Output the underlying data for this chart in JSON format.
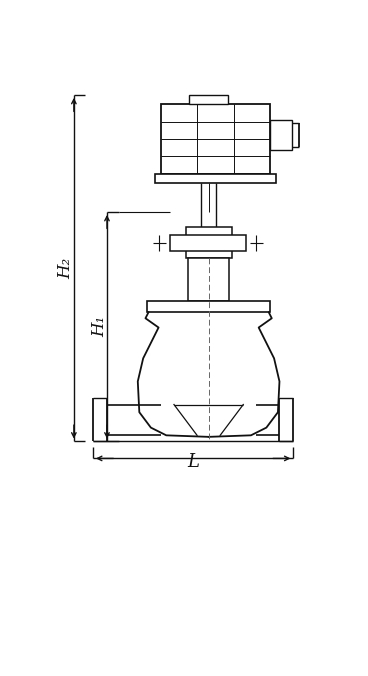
{
  "background_color": "#ffffff",
  "line_color": "#111111",
  "fig_width": 3.68,
  "fig_height": 6.76,
  "dpi": 100,
  "label_H2": "H₂",
  "label_H1": "H₁",
  "label_L": "L"
}
